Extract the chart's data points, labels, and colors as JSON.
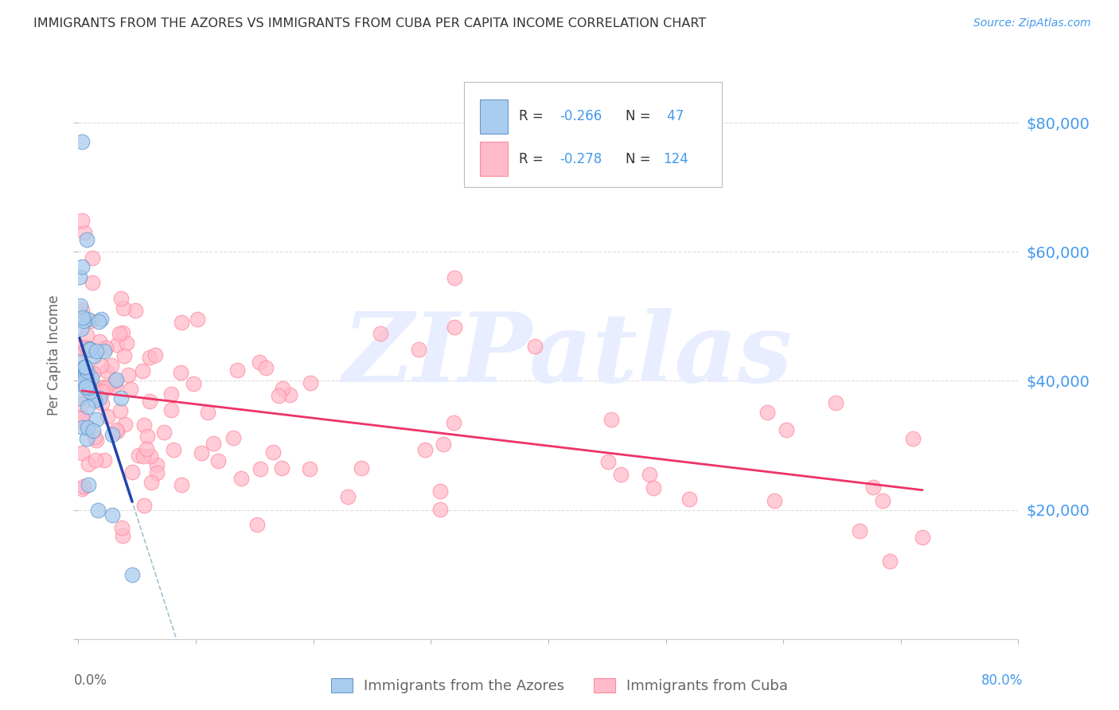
{
  "title": "IMMIGRANTS FROM THE AZORES VS IMMIGRANTS FROM CUBA PER CAPITA INCOME CORRELATION CHART",
  "source": "Source: ZipAtlas.com",
  "ylabel": "Per Capita Income",
  "xlim": [
    0.0,
    0.8
  ],
  "ylim": [
    0,
    88000
  ],
  "ytick_vals": [
    0,
    20000,
    40000,
    60000,
    80000
  ],
  "ytick_labels_right": [
    "",
    "$20,000",
    "$40,000",
    "$60,000",
    "$80,000"
  ],
  "legend_label1": "Immigrants from the Azores",
  "legend_label2": "Immigrants from Cuba",
  "R1": -0.266,
  "N1": 47,
  "R2": -0.278,
  "N2": 124,
  "color_azores_fill": "#AACCEE",
  "color_azores_edge": "#6699CC",
  "color_cuba_fill": "#FFBBCC",
  "color_cuba_edge": "#FF8899",
  "color_line_azores": "#2244AA",
  "color_line_cuba": "#EE3366",
  "color_line_dashed": "#99BBCC",
  "color_right_axis": "#4499EE",
  "color_legend_r": "#4499EE",
  "watermark_color": "#E8EEFF",
  "bg_color": "#FFFFFF",
  "grid_color": "#DDDDDD",
  "title_color": "#333333",
  "label_color": "#666666",
  "source_color": "#4499EE"
}
